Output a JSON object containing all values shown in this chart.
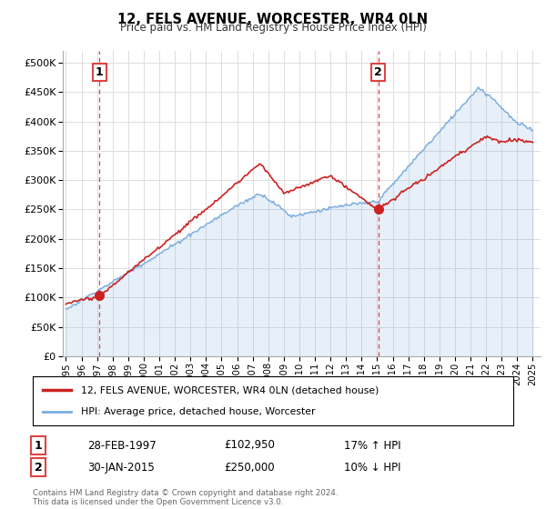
{
  "title": "12, FELS AVENUE, WORCESTER, WR4 0LN",
  "subtitle": "Price paid vs. HM Land Registry's House Price Index (HPI)",
  "legend_label_red": "12, FELS AVENUE, WORCESTER, WR4 0LN (detached house)",
  "legend_label_blue": "HPI: Average price, detached house, Worcester",
  "footer": "Contains HM Land Registry data © Crown copyright and database right 2024.\nThis data is licensed under the Open Government Licence v3.0.",
  "transaction1_date": "28-FEB-1997",
  "transaction1_price": "£102,950",
  "transaction1_hpi": "17% ↑ HPI",
  "transaction2_date": "30-JAN-2015",
  "transaction2_price": "£250,000",
  "transaction2_hpi": "10% ↓ HPI",
  "transaction1_x": 1997.15,
  "transaction1_y": 102950,
  "transaction2_x": 2015.08,
  "transaction2_y": 250000,
  "red_color": "#cc2222",
  "blue_color": "#7aadde",
  "vline_color": "#dd4444",
  "grid_color": "#dddddd",
  "ylim": [
    0,
    520000
  ],
  "xlim": [
    1994.8,
    2025.5
  ],
  "yticks": [
    0,
    50000,
    100000,
    150000,
    200000,
    250000,
    300000,
    350000,
    400000,
    450000,
    500000
  ],
  "xticks": [
    1995,
    1996,
    1997,
    1998,
    1999,
    2000,
    2001,
    2002,
    2003,
    2004,
    2005,
    2006,
    2007,
    2008,
    2009,
    2010,
    2011,
    2012,
    2013,
    2014,
    2015,
    2016,
    2017,
    2018,
    2019,
    2020,
    2021,
    2022,
    2023,
    2024,
    2025
  ]
}
